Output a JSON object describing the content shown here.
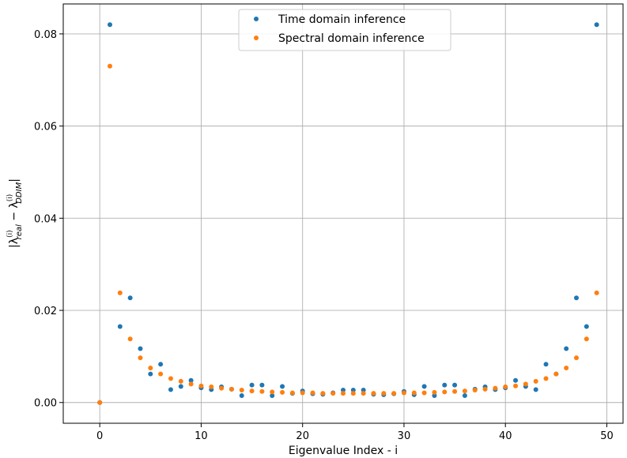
{
  "chart_data": {
    "type": "scatter",
    "xlabel": "Eigenvalue Index - i",
    "ylabel_parts": {
      "open": "|λ",
      "sup1": "(i)",
      "sub1": "real",
      "minus": " − λ",
      "sup2": "(i)",
      "sub2": "DDIM",
      "close": "|"
    },
    "xlim": [
      -3.6,
      51.6
    ],
    "ylim": [
      -0.0045,
      0.0865
    ],
    "xticks": [
      0,
      10,
      20,
      30,
      40,
      50
    ],
    "xtick_labels": [
      "0",
      "10",
      "20",
      "30",
      "40",
      "50"
    ],
    "yticks": [
      0.0,
      0.02,
      0.04,
      0.06,
      0.08
    ],
    "ytick_labels": [
      "0.00",
      "0.02",
      "0.04",
      "0.06",
      "0.08"
    ],
    "grid": true,
    "legend_position": "top-center",
    "series": [
      {
        "name": "Time domain inference",
        "color": "#1f77b4",
        "x": [
          0,
          1,
          2,
          3,
          4,
          5,
          6,
          7,
          8,
          9,
          10,
          11,
          12,
          13,
          14,
          15,
          16,
          17,
          18,
          19,
          20,
          21,
          22,
          23,
          24,
          25,
          26,
          27,
          28,
          29,
          30,
          31,
          32,
          33,
          34,
          35,
          36,
          37,
          38,
          39,
          40,
          41,
          42,
          43,
          44,
          45,
          46,
          47,
          48,
          49
        ],
        "y": [
          0.0,
          0.082,
          0.0165,
          0.0227,
          0.0117,
          0.0062,
          0.0083,
          0.0028,
          0.0035,
          0.0048,
          0.0032,
          0.0028,
          0.0034,
          0.0029,
          0.0015,
          0.0038,
          0.0038,
          0.0015,
          0.0035,
          0.002,
          0.0025,
          0.0019,
          0.0018,
          0.0021,
          0.0027,
          0.0027,
          0.0027,
          0.0018,
          0.0017,
          0.0019,
          0.0024,
          0.0017,
          0.0035,
          0.0015,
          0.0038,
          0.0038,
          0.0015,
          0.0029,
          0.0034,
          0.0028,
          0.0032,
          0.0048,
          0.0035,
          0.0028,
          0.0083,
          0.0062,
          0.0117,
          0.0227,
          0.0165,
          0.082
        ]
      },
      {
        "name": "Spectral domain inference",
        "color": "#ff7f0e",
        "x": [
          0,
          1,
          2,
          3,
          4,
          5,
          6,
          7,
          8,
          9,
          10,
          11,
          12,
          13,
          14,
          15,
          16,
          17,
          18,
          19,
          20,
          21,
          22,
          23,
          24,
          25,
          26,
          27,
          28,
          29,
          30,
          31,
          32,
          33,
          34,
          35,
          36,
          37,
          38,
          39,
          40,
          41,
          42,
          43,
          44,
          45,
          46,
          47,
          48,
          49
        ],
        "y": [
          0.0,
          0.073,
          0.0238,
          0.0138,
          0.0097,
          0.0075,
          0.0062,
          0.0052,
          0.0046,
          0.004,
          0.0036,
          0.0034,
          0.0031,
          0.0029,
          0.0027,
          0.0025,
          0.0024,
          0.0023,
          0.0022,
          0.0021,
          0.0021,
          0.0021,
          0.002,
          0.002,
          0.002,
          0.002,
          0.002,
          0.002,
          0.002,
          0.002,
          0.0021,
          0.0021,
          0.0021,
          0.0022,
          0.0023,
          0.0024,
          0.0025,
          0.0027,
          0.0029,
          0.0031,
          0.0034,
          0.0036,
          0.004,
          0.0046,
          0.0052,
          0.0062,
          0.0075,
          0.0097,
          0.0138,
          0.0238
        ]
      }
    ]
  }
}
